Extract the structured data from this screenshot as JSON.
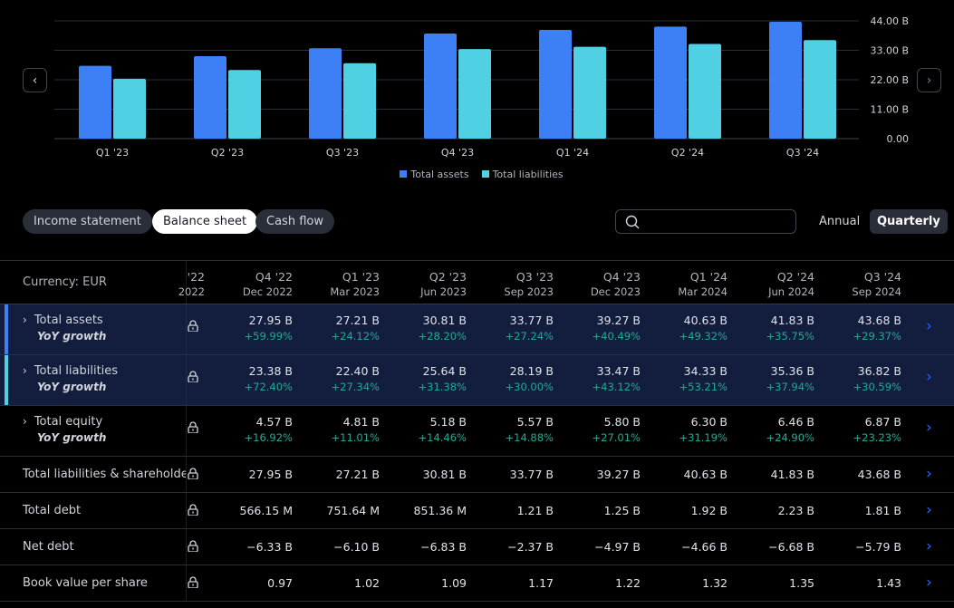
{
  "chart_data": {
    "type": "bar",
    "categories": [
      "Q1 '23",
      "Q2 '23",
      "Q3 '23",
      "Q4 '23",
      "Q1 '24",
      "Q2 '24",
      "Q3 '24"
    ],
    "series": [
      {
        "name": "Total assets",
        "color": "#3d7ff5",
        "values": [
          27.21,
          30.81,
          33.77,
          39.27,
          40.63,
          41.83,
          43.68
        ]
      },
      {
        "name": "Total liabilities",
        "color": "#4fd1e3",
        "values": [
          22.4,
          25.64,
          28.19,
          33.47,
          34.33,
          35.36,
          36.82
        ]
      }
    ],
    "yticks": [
      "44.00 B",
      "33.00 B",
      "22.00 B",
      "11.00 B",
      "0.00"
    ],
    "ytick_values": [
      44,
      33,
      22,
      11,
      0
    ],
    "ylim": [
      0,
      44
    ],
    "unit": "B",
    "grid": true,
    "legend": "bottom"
  },
  "tabs": [
    {
      "label": "Income statement"
    },
    {
      "label": "Balance sheet",
      "active": true
    },
    {
      "label": "Cash flow"
    }
  ],
  "periods": {
    "annual": "Annual",
    "quarterly": "Quarterly"
  },
  "search": {
    "placeholder": ""
  },
  "table": {
    "currency": "Currency: EUR",
    "partial_col": {
      "q": "'22",
      "d": "2022"
    },
    "columns": [
      {
        "q": "Q4 '22",
        "d": "Dec 2022"
      },
      {
        "q": "Q1 '23",
        "d": "Mar 2023"
      },
      {
        "q": "Q2 '23",
        "d": "Jun 2023"
      },
      {
        "q": "Q3 '23",
        "d": "Sep 2023"
      },
      {
        "q": "Q4 '23",
        "d": "Dec 2023"
      },
      {
        "q": "Q1 '24",
        "d": "Mar 2024"
      },
      {
        "q": "Q2 '24",
        "d": "Jun 2024"
      },
      {
        "q": "Q3 '24",
        "d": "Sep 2024"
      }
    ],
    "rows": [
      {
        "label": "Total assets",
        "sub": "YoY growth",
        "expand": true,
        "hl": true,
        "color": "#3d7ff5",
        "values": [
          "27.95 B",
          "27.21 B",
          "30.81 B",
          "33.77 B",
          "39.27 B",
          "40.63 B",
          "41.83 B",
          "43.68 B"
        ],
        "growth": [
          "+59.99%",
          "+24.12%",
          "+28.20%",
          "+27.24%",
          "+40.49%",
          "+49.32%",
          "+35.75%",
          "+29.37%"
        ]
      },
      {
        "label": "Total liabilities",
        "sub": "YoY growth",
        "expand": true,
        "hl": true,
        "color": "#4fd1e3",
        "values": [
          "23.38 B",
          "22.40 B",
          "25.64 B",
          "28.19 B",
          "33.47 B",
          "34.33 B",
          "35.36 B",
          "36.82 B"
        ],
        "growth": [
          "+72.40%",
          "+27.34%",
          "+31.38%",
          "+30.00%",
          "+43.12%",
          "+53.21%",
          "+37.94%",
          "+30.59%"
        ]
      },
      {
        "label": "Total equity",
        "sub": "YoY growth",
        "expand": true,
        "values": [
          "4.57 B",
          "4.81 B",
          "5.18 B",
          "5.57 B",
          "5.80 B",
          "6.30 B",
          "6.46 B",
          "6.87 B"
        ],
        "growth": [
          "+16.92%",
          "+11.01%",
          "+14.46%",
          "+14.88%",
          "+27.01%",
          "+31.19%",
          "+24.90%",
          "+23.23%"
        ]
      },
      {
        "label": "Total liabilities & shareholders' equity",
        "values": [
          "27.95 B",
          "27.21 B",
          "30.81 B",
          "33.77 B",
          "39.27 B",
          "40.63 B",
          "41.83 B",
          "43.68 B"
        ]
      },
      {
        "label": "Total debt",
        "values": [
          "566.15 M",
          "751.64 M",
          "851.36 M",
          "1.21 B",
          "1.25 B",
          "1.92 B",
          "2.23 B",
          "1.81 B"
        ]
      },
      {
        "label": "Net debt",
        "values": [
          "−6.33 B",
          "−6.10 B",
          "−6.83 B",
          "−2.37 B",
          "−4.97 B",
          "−4.66 B",
          "−6.68 B",
          "−5.79 B"
        ]
      },
      {
        "label": "Book value per share",
        "values": [
          "0.97",
          "1.02",
          "1.09",
          "1.17",
          "1.22",
          "1.32",
          "1.35",
          "1.43"
        ]
      }
    ]
  }
}
